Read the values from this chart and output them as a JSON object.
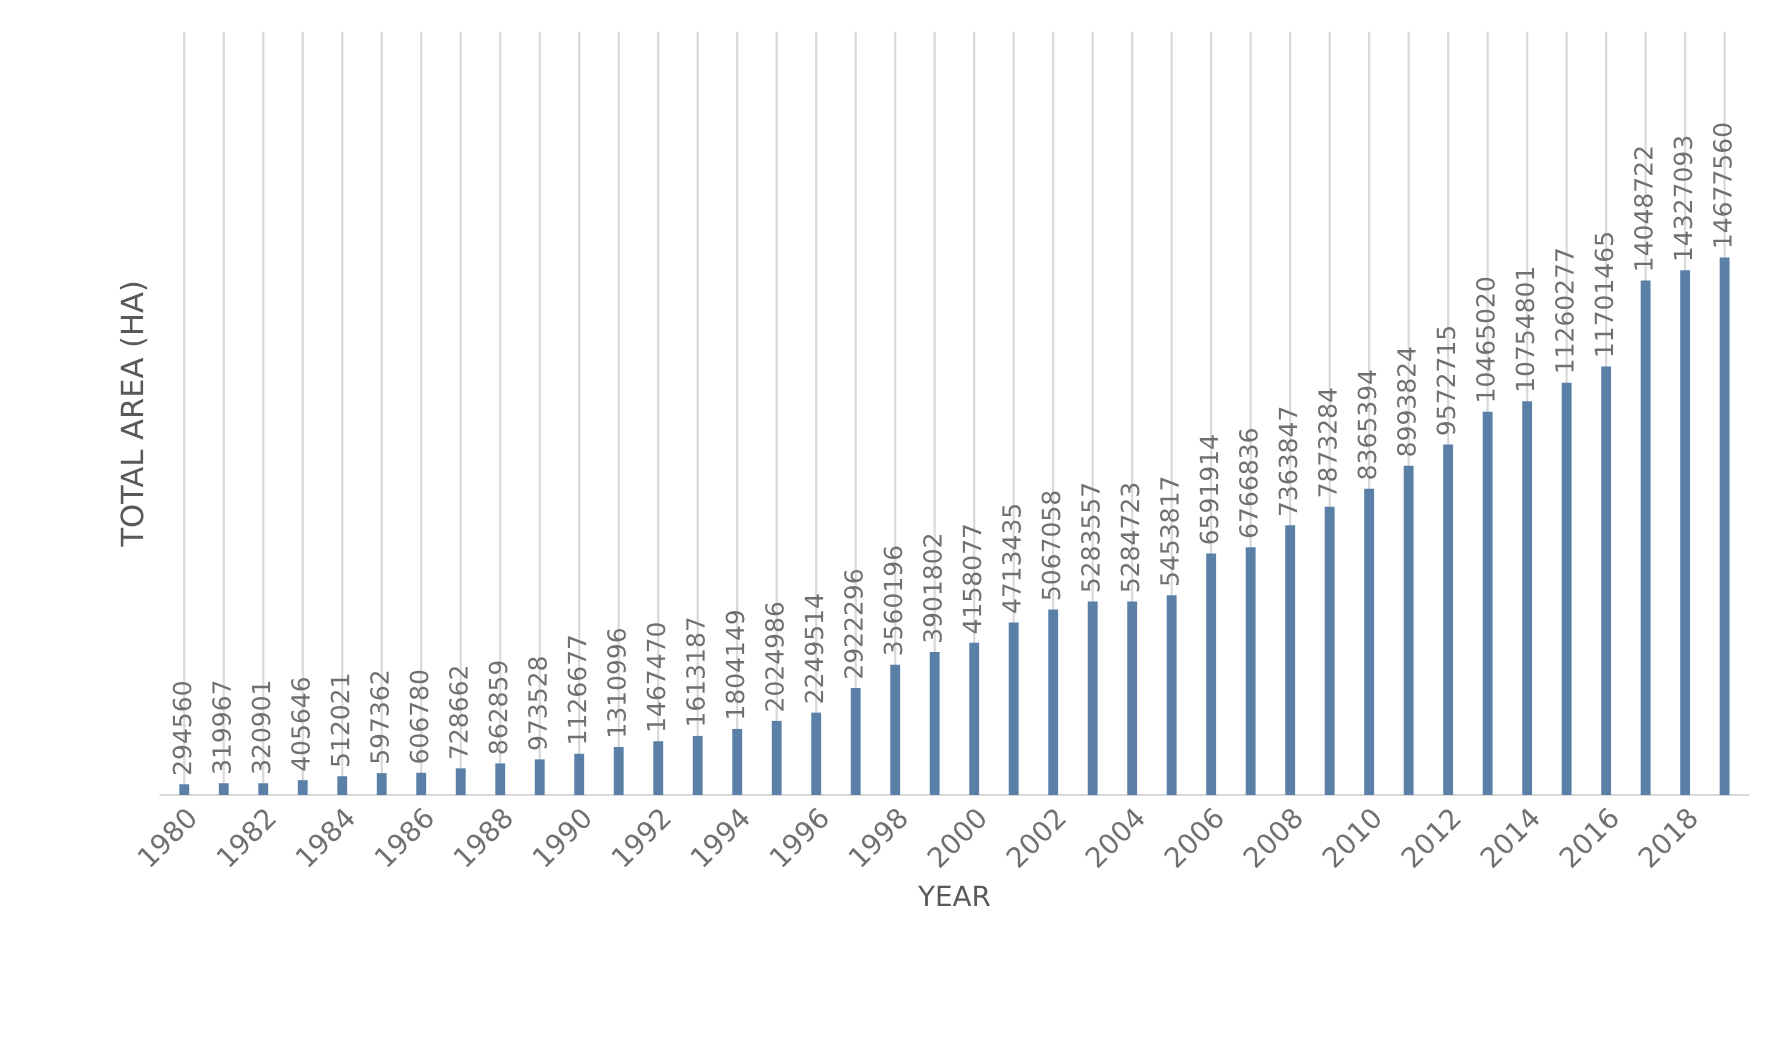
{
  "chart_data": {
    "type": "bar",
    "xlabel": "YEAR",
    "ylabel": "TOTAL AREA (HA)",
    "categories": [
      "1980",
      null,
      "1982",
      null,
      "1984",
      null,
      "1986",
      null,
      "1988",
      null,
      "1990",
      null,
      "1992",
      null,
      "1994",
      null,
      "1996",
      null,
      "1998",
      null,
      "2000",
      null,
      "2002",
      null,
      "2004",
      null,
      "2006",
      null,
      "2008",
      null,
      "2010",
      null,
      "2012",
      null,
      "2014",
      null,
      "2016",
      null,
      "2018",
      null
    ],
    "values": [
      294560,
      319967,
      320901,
      405646,
      512021,
      597362,
      606780,
      728662,
      862859,
      973528,
      1126677,
      1310996,
      1467470,
      1613187,
      1804149,
      2024986,
      2249514,
      2922296,
      3560196,
      3901802,
      4158077,
      4713435,
      5067058,
      5283557,
      5284723,
      5453817,
      6591914,
      6766836,
      7363847,
      7873284,
      8365394,
      8993824,
      9572715,
      10465020,
      10754801,
      11260277,
      11701465,
      14048722,
      14327093,
      14677560
    ],
    "color": "#5b80a8",
    "data_labels": true,
    "grid": "x",
    "tick_labels": "x"
  }
}
